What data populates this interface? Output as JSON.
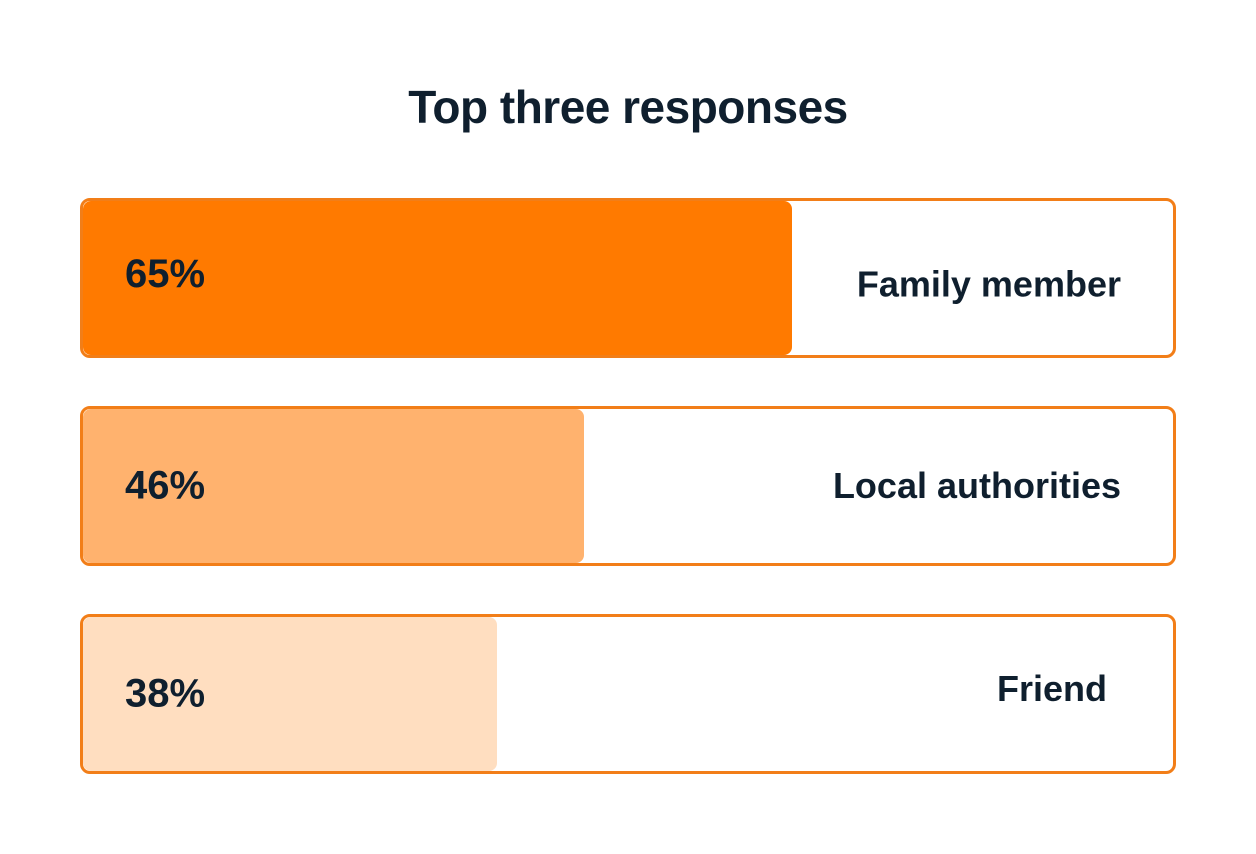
{
  "chart_data": {
    "type": "bar",
    "orientation": "horizontal",
    "title": "Top three responses",
    "categories": [
      "Family member",
      "Local authorities",
      "Friend"
    ],
    "values": [
      65,
      46,
      38
    ],
    "value_labels": [
      "65%",
      "46%",
      "38%"
    ],
    "xlim": [
      0,
      100
    ],
    "unit": "%",
    "grid": false,
    "legend": "none",
    "colors": {
      "border": "#f27e18",
      "bars": [
        "#ff7a00",
        "#ffb26e",
        "#ffdec0"
      ],
      "text": "#0f1f2e"
    }
  }
}
